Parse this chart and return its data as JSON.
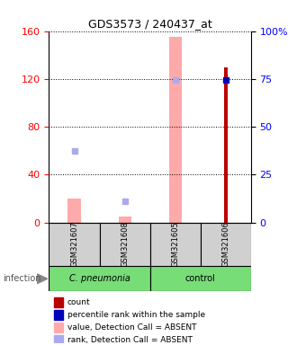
{
  "title": "GDS3573 / 240437_at",
  "samples": [
    "GSM321607",
    "GSM321608",
    "GSM321605",
    "GSM321606"
  ],
  "ylim_left": [
    0,
    160
  ],
  "ylim_right": [
    0,
    100
  ],
  "yticks_left": [
    0,
    40,
    80,
    120,
    160
  ],
  "yticks_right": [
    0,
    25,
    50,
    75,
    100
  ],
  "yticklabels_right": [
    "0",
    "25",
    "50",
    "75",
    "100%"
  ],
  "bar_color_present": "#bb0000",
  "bar_color_absent": "#ffaaaa",
  "dot_color_present": "#0000bb",
  "dot_color_absent": "#aaaaee",
  "count_values": [
    null,
    null,
    null,
    130
  ],
  "count_absent_values": [
    20,
    5,
    155,
    null
  ],
  "rank_values": [
    null,
    null,
    null,
    119
  ],
  "rank_absent_values": [
    60,
    18,
    119,
    null
  ],
  "sample_bg_color": "#d0d0d0",
  "group_color": "#77dd77",
  "infection_label": "infection",
  "legend_items": [
    {
      "color": "#bb0000",
      "label": "count"
    },
    {
      "color": "#0000bb",
      "label": "percentile rank within the sample"
    },
    {
      "color": "#ffaaaa",
      "label": "value, Detection Call = ABSENT"
    },
    {
      "color": "#aaaaee",
      "label": "rank, Detection Call = ABSENT"
    }
  ],
  "absent_bar_width": 0.25,
  "present_bar_width": 0.08,
  "dot_marker_size": 4,
  "axis_left_color": "red",
  "axis_right_color": "blue",
  "grid_linestyle": ":",
  "grid_color": "black",
  "grid_linewidth": 0.7,
  "title_fontsize": 9,
  "tick_fontsize": 8,
  "sample_fontsize": 6,
  "group_fontsize": 7,
  "legend_fontsize": 6.5,
  "infection_fontsize": 7
}
